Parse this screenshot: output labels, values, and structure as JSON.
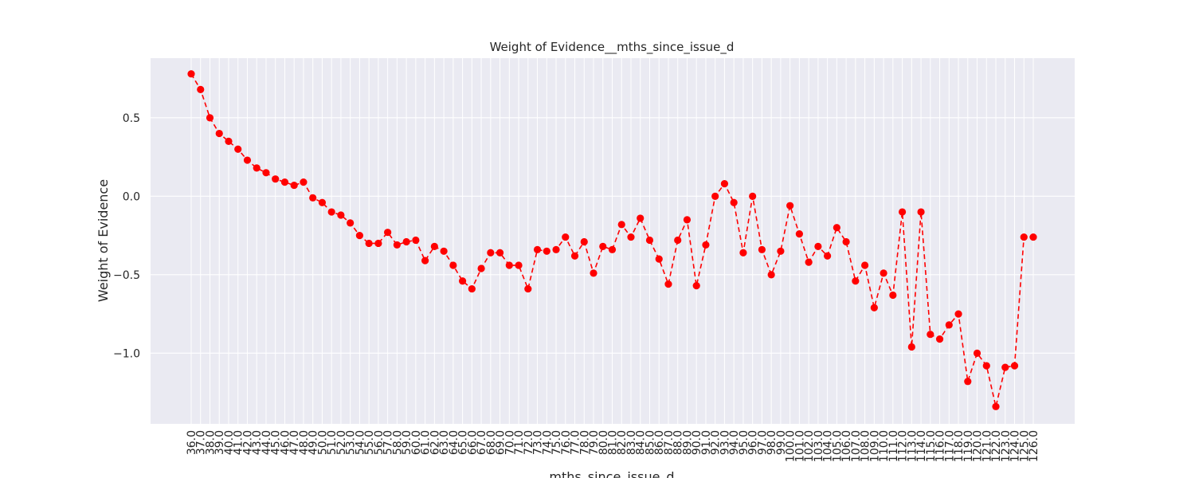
{
  "chart_data": {
    "type": "line",
    "title": "Weight of Evidence__mths_since_issue_d",
    "xlabel": "mths_since_issue_d",
    "ylabel": "Weight of Evidence",
    "ylim": [
      -1.45,
      0.88
    ],
    "yticks": [
      0.5,
      0.0,
      -0.5,
      -1.0
    ],
    "ytick_labels": [
      "0.5",
      "0.0",
      "−0.5",
      "−1.0"
    ],
    "grid": true,
    "line_style": "dashed",
    "marker": "circle",
    "line_color": "#ff0000",
    "background_color": "#eaeaf2",
    "grid_color": "#ffffff",
    "categories": [
      "36.0",
      "37.0",
      "38.0",
      "39.0",
      "40.0",
      "41.0",
      "42.0",
      "43.0",
      "44.0",
      "45.0",
      "46.0",
      "47.0",
      "48.0",
      "49.0",
      "50.0",
      "51.0",
      "52.0",
      "53.0",
      "54.0",
      "55.0",
      "56.0",
      "57.0",
      "58.0",
      "59.0",
      "60.0",
      "61.0",
      "62.0",
      "63.0",
      "64.0",
      "65.0",
      "66.0",
      "67.0",
      "68.0",
      "69.0",
      "70.0",
      "71.0",
      "72.0",
      "73.0",
      "74.0",
      "75.0",
      "76.0",
      "77.0",
      "78.0",
      "79.0",
      "80.0",
      "81.0",
      "82.0",
      "83.0",
      "84.0",
      "85.0",
      "86.0",
      "87.0",
      "88.0",
      "89.0",
      "90.0",
      "91.0",
      "92.0",
      "93.0",
      "94.0",
      "95.0",
      "96.0",
      "97.0",
      "98.0",
      "99.0",
      "100.0",
      "101.0",
      "102.0",
      "103.0",
      "104.0",
      "105.0",
      "106.0",
      "107.0",
      "108.0",
      "109.0",
      "110.0",
      "111.0",
      "112.0",
      "113.0",
      "114.0",
      "115.0",
      "116.0",
      "117.0",
      "118.0",
      "119.0",
      "120.0",
      "121.0",
      "122.0",
      "123.0",
      "124.0",
      "125.0",
      "126.0"
    ],
    "values": [
      0.78,
      0.68,
      0.5,
      0.4,
      0.35,
      0.3,
      0.23,
      0.18,
      0.15,
      0.11,
      0.09,
      0.07,
      0.09,
      -0.01,
      -0.04,
      -0.1,
      -0.12,
      -0.17,
      -0.25,
      -0.3,
      -0.3,
      -0.23,
      -0.31,
      -0.29,
      -0.28,
      -0.41,
      -0.32,
      -0.35,
      -0.44,
      -0.54,
      -0.59,
      -0.46,
      -0.36,
      -0.36,
      -0.44,
      -0.44,
      -0.59,
      -0.34,
      -0.35,
      -0.34,
      -0.26,
      -0.38,
      -0.29,
      -0.49,
      -0.32,
      -0.34,
      -0.18,
      -0.26,
      -0.14,
      -0.28,
      -0.4,
      -0.56,
      -0.28,
      -0.15,
      -0.57,
      -0.31,
      0.0,
      0.08,
      -0.04,
      -0.36,
      0.0,
      -0.34,
      -0.5,
      -0.35,
      -0.06,
      -0.24,
      -0.42,
      -0.32,
      -0.38,
      -0.2,
      -0.29,
      -0.54,
      -0.44,
      -0.71,
      -0.49,
      -0.63,
      -0.1,
      -0.96,
      -0.1,
      -0.88,
      -0.91,
      -0.82,
      -0.75,
      -1.18,
      -1.0,
      -1.08,
      -1.34,
      -1.09,
      -1.08,
      -0.26,
      -0.26
    ]
  }
}
